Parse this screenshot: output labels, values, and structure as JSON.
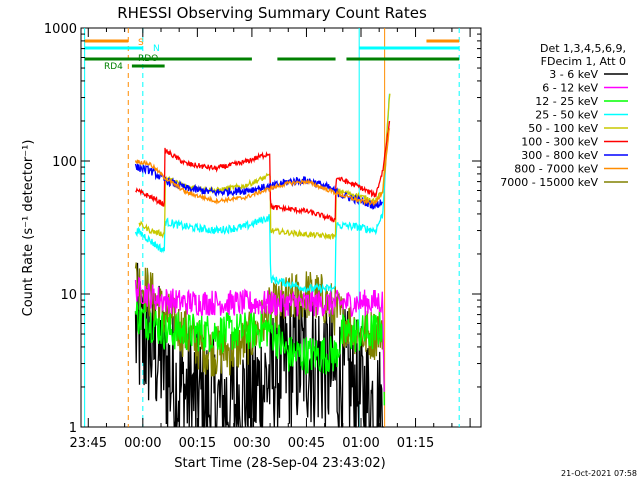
{
  "chart_data": {
    "type": "line",
    "title": "RHESSI Observing Summary Count Rates",
    "xlabel": "Start Time (28-Sep-04 23:43:02)",
    "ylabel": "Count Rate (s⁻¹ detector⁻¹)",
    "y_scale": "log",
    "ylim": [
      1,
      1000
    ],
    "xlim_minutes": [
      -17,
      93
    ],
    "x_tick_labels": [
      "23:45",
      "00:00",
      "00:15",
      "00:30",
      "00:45",
      "01:00",
      "01:15"
    ],
    "x_tick_values_minutes": [
      -15,
      0,
      15,
      30,
      45,
      60,
      75
    ],
    "y_tick_labels": [
      "1",
      "10",
      "100",
      "1000"
    ],
    "y_tick_values": [
      1,
      10,
      100,
      1000
    ],
    "legend_title": [
      "Det 1,3,4,5,6,9,",
      "FDecim 1, Att 0"
    ],
    "legend_position": "right",
    "footer_date": "21-Oct-2021 07:58",
    "flags": [
      {
        "label": "S",
        "color": "#ff8c00",
        "segments": [
          [
            -16,
            -4
          ],
          [
            78,
            87
          ]
        ]
      },
      {
        "label": "N",
        "color": "#00ffff",
        "segments": [
          [
            -16,
            0
          ],
          [
            59.5,
            87
          ]
        ]
      },
      {
        "label": "RDO",
        "color": "#008000",
        "segments": [
          [
            -16,
            30
          ],
          [
            37,
            53
          ],
          [
            56,
            87
          ]
        ]
      },
      {
        "label": "RD4",
        "color": "#008000",
        "segments": [
          [
            -3,
            6
          ]
        ]
      }
    ],
    "vertical_markers": [
      {
        "x": -16,
        "color": "#00ffff",
        "dash": false
      },
      {
        "x": -4,
        "color": "#ff8c00",
        "dash": true
      },
      {
        "x": 0,
        "color": "#00ffff",
        "dash": true
      },
      {
        "x": 59.5,
        "color": "#00ffff",
        "dash": false
      },
      {
        "x": 66.5,
        "color": "#ff8c00",
        "dash": false
      },
      {
        "x": 87,
        "color": "#00ffff",
        "dash": true
      }
    ],
    "series": [
      {
        "name": "3 - 6 keV",
        "color": "#000000",
        "noise": 0.55,
        "points": [
          [
            -2,
            5
          ],
          [
            3,
            4
          ],
          [
            6,
            3
          ],
          [
            9,
            2
          ],
          [
            20,
            1.4
          ],
          [
            30,
            1.7
          ],
          [
            35,
            2.4
          ],
          [
            40,
            3
          ],
          [
            45,
            3.4
          ],
          [
            50,
            3
          ],
          [
            53,
            2.2
          ],
          [
            55,
            2.4
          ],
          [
            60,
            1.7
          ],
          [
            63,
            1.5
          ],
          [
            66,
            1.2
          ],
          [
            66.5,
            1
          ]
        ]
      },
      {
        "name": "6 - 12 keV",
        "color": "#ff00ff",
        "noise": 0.1,
        "points": [
          [
            -2,
            11
          ],
          [
            3,
            9.5
          ],
          [
            6,
            9
          ],
          [
            10,
            8.7
          ],
          [
            20,
            8.6
          ],
          [
            30,
            8.5
          ],
          [
            40,
            8.5
          ],
          [
            50,
            8.5
          ],
          [
            60,
            8.6
          ],
          [
            64,
            8.7
          ],
          [
            66,
            8.8
          ],
          [
            66.5,
            1
          ]
        ]
      },
      {
        "name": "12 - 25 keV",
        "color": "#00ff00",
        "noise": 0.15,
        "points": [
          [
            -2,
            7
          ],
          [
            3,
            6
          ],
          [
            6,
            5.3
          ],
          [
            12,
            5.2
          ],
          [
            20,
            5.1
          ],
          [
            30,
            5.3
          ],
          [
            35,
            5.5
          ],
          [
            40,
            3.5
          ],
          [
            45,
            3.5
          ],
          [
            50,
            3.5
          ],
          [
            53,
            3.5
          ],
          [
            55,
            5
          ],
          [
            60,
            5
          ],
          [
            64,
            5.2
          ],
          [
            66,
            6
          ],
          [
            66.5,
            1
          ]
        ]
      },
      {
        "name": "25 - 50 keV",
        "color": "#00ffff",
        "noise": 0.03,
        "points": [
          [
            -2,
            30
          ],
          [
            0,
            28
          ],
          [
            3,
            24
          ],
          [
            6,
            21
          ],
          [
            6.1,
            35
          ],
          [
            12,
            32
          ],
          [
            20,
            30
          ],
          [
            28,
            32
          ],
          [
            35,
            38
          ],
          [
            35.1,
            13
          ],
          [
            45,
            11
          ],
          [
            53,
            11
          ],
          [
            53.1,
            33
          ],
          [
            59,
            32
          ],
          [
            64,
            30
          ],
          [
            66,
            40
          ],
          [
            68,
            400
          ]
        ]
      },
      {
        "name": "50 - 100 keV",
        "color": "#c8c800",
        "noise": 0.02,
        "points": [
          [
            -1,
            34
          ],
          [
            2,
            30
          ],
          [
            6,
            28
          ],
          [
            6.1,
            75
          ],
          [
            12,
            64
          ],
          [
            20,
            60
          ],
          [
            28,
            65
          ],
          [
            35,
            78
          ],
          [
            35.1,
            30
          ],
          [
            45,
            28
          ],
          [
            53,
            27
          ],
          [
            53.1,
            60
          ],
          [
            59,
            55
          ],
          [
            64,
            50
          ],
          [
            66,
            60
          ],
          [
            68,
            350
          ]
        ]
      },
      {
        "name": "100 - 300 keV",
        "color": "#ff0000",
        "noise": 0.02,
        "points": [
          [
            -2,
            60
          ],
          [
            2,
            54
          ],
          [
            6,
            47
          ],
          [
            6.1,
            120
          ],
          [
            12,
            95
          ],
          [
            20,
            88
          ],
          [
            28,
            98
          ],
          [
            35,
            115
          ],
          [
            35.1,
            45
          ],
          [
            45,
            42
          ],
          [
            53,
            36
          ],
          [
            53.1,
            75
          ],
          [
            59,
            65
          ],
          [
            64,
            55
          ],
          [
            66,
            85
          ],
          [
            68,
            220
          ]
        ]
      },
      {
        "name": "300 - 800 keV",
        "color": "#0000ff",
        "noise": 0.03,
        "points": [
          [
            -2,
            90
          ],
          [
            2,
            85
          ],
          [
            6,
            72
          ],
          [
            12,
            62
          ],
          [
            20,
            58
          ],
          [
            28,
            60
          ],
          [
            35,
            64
          ],
          [
            40,
            70
          ],
          [
            45,
            72
          ],
          [
            50,
            65
          ],
          [
            55,
            55
          ],
          [
            60,
            50
          ],
          [
            64,
            46
          ],
          [
            66,
            50
          ]
        ]
      },
      {
        "name": "800 - 7000 keV",
        "color": "#ff8c00",
        "noise": 0.015,
        "points": [
          [
            -2,
            100
          ],
          [
            2,
            95
          ],
          [
            6,
            75
          ],
          [
            12,
            58
          ],
          [
            20,
            50
          ],
          [
            28,
            53
          ],
          [
            35,
            62
          ],
          [
            40,
            68
          ],
          [
            45,
            70
          ],
          [
            50,
            62
          ],
          [
            55,
            55
          ],
          [
            60,
            50
          ],
          [
            64,
            48
          ],
          [
            66,
            60
          ],
          [
            68,
            200
          ]
        ]
      },
      {
        "name": "7000 - 15000 keV",
        "color": "#808000",
        "noise": 0.2,
        "points": [
          [
            -2,
            13
          ],
          [
            2,
            10
          ],
          [
            6,
            7
          ],
          [
            12,
            5
          ],
          [
            16,
            4
          ],
          [
            20,
            3.7
          ],
          [
            25,
            3.8
          ],
          [
            30,
            4.8
          ],
          [
            35,
            7.3
          ],
          [
            40,
            9
          ],
          [
            45,
            10
          ],
          [
            50,
            9
          ],
          [
            55,
            6.5
          ],
          [
            60,
            5
          ],
          [
            64,
            5
          ],
          [
            66,
            6
          ]
        ]
      }
    ]
  }
}
